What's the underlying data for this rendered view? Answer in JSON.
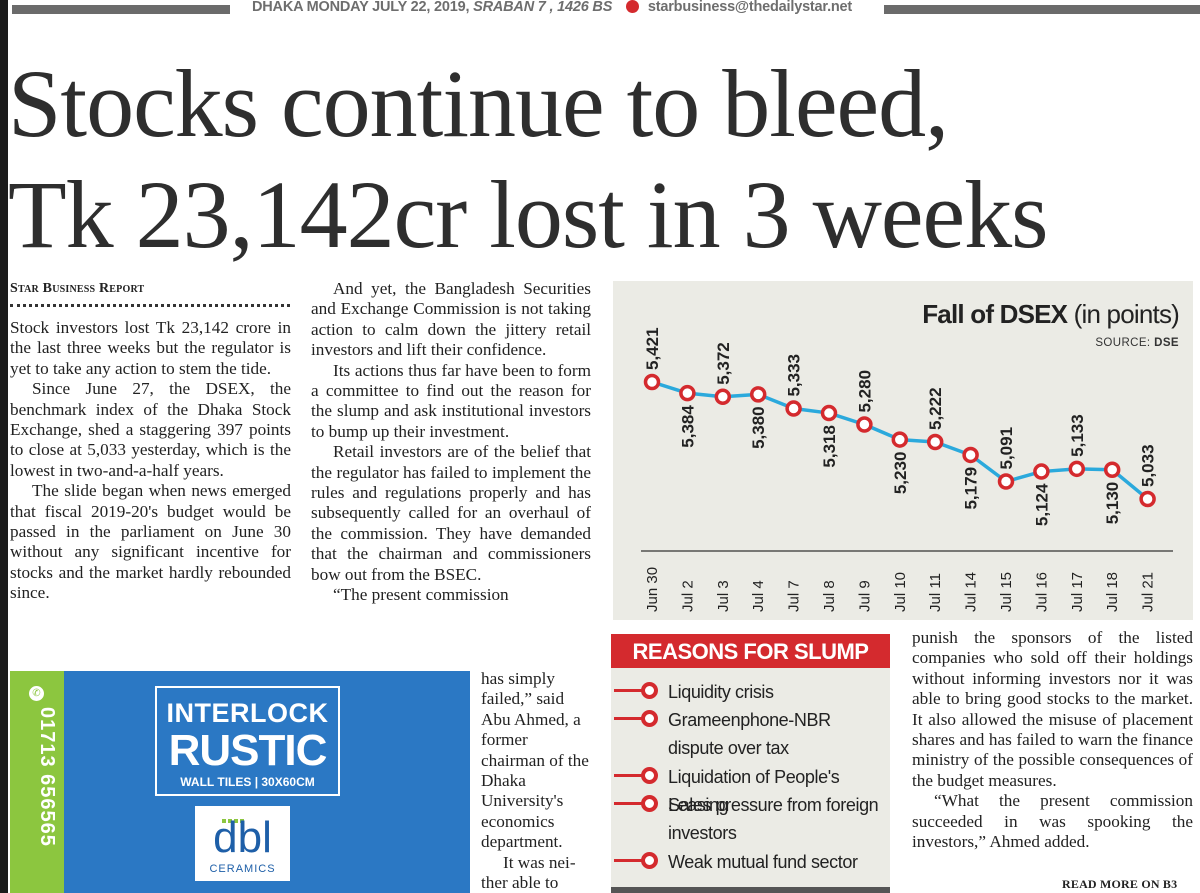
{
  "masthead": {
    "dateline": "DHAKA MONDAY JULY 22, 2019,",
    "bangla_date": "SRABAN 7 , 1426 BS",
    "email": "starbusiness@thedailystar.net"
  },
  "headline": {
    "line1": "Stocks continue to bleed,",
    "line2": "Tk 23,142cr lost in 3 weeks"
  },
  "byline": "Star Business Report",
  "col1": [
    "Stock investors lost Tk 23,142 crore in the last three weeks but the regulator is yet to take any action to stem the tide.",
    "Since June 27, the DSEX, the benchmark index of the Dhaka Stock Exchange, shed a staggering 397 points to close at 5,033 yesterday, which is the lowest in two-and-a-half years.",
    "The slide began when news emerged that fiscal 2019-20's budget would be passed in the parliament on June 30 without any significant incentive for stocks and the market hardly rebounded since."
  ],
  "col2": [
    "And yet, the Bangladesh Securities and Exchange Commission is not taking action to calm down the jittery retail investors and lift their confidence.",
    "Its actions thus far have been to form a committee to find out the reason for the slump and ask institutional investors to bump up their investment.",
    "Retail investors are of the belief that the regulator has failed to implement the rules and regulations properly and has subsequently called for an overhaul of the commission. They have demanded that the chairman and commissioners bow out from the BSEC.",
    "“The present commission"
  ],
  "col2b": [
    "has simply failed,” said Abu Ahmed, a former chairman of the Dhaka University's economics department.",
    "It was nei-ther able to"
  ],
  "col3": [
    "punish the sponsors of the listed companies who sold off their holdings without informing investors nor it was able to bring good stocks to the market. It also allowed the misuse of placement shares and has failed to warn the finance ministry of the possible consequences of the budget measures.",
    "“What the present commission succeeded in was spooking the investors,” Ahmed added."
  ],
  "read_more": "READ MORE ON B3",
  "ad": {
    "phone": "01713 656565",
    "title1": "INTERLOCK",
    "title2": "RUSTIC",
    "title3": "WALL TILES | 30X60CM",
    "logo": "dbl",
    "logo_sub": "CERAMICS"
  },
  "reasons": {
    "title": "REASONS FOR SLUMP",
    "items": [
      "Liquidity crisis",
      "Grameenphone-NBR dispute over tax",
      "Liquidation of People's Leasing",
      "Sales pressure from foreign investors",
      "Weak mutual fund sector"
    ]
  },
  "chart_data": {
    "type": "line",
    "title": "Fall of DSEX",
    "title_unit": "(in points)",
    "source_label": "SOURCE:",
    "source": "DSE",
    "categories": [
      "Jun 30",
      "Jul 2",
      "Jul 3",
      "Jul 4",
      "Jul 7",
      "Jul 8",
      "Jul 9",
      "Jul 10",
      "Jul 11",
      "Jul 14",
      "Jul 15",
      "Jul 16",
      "Jul 17",
      "Jul 18",
      "Jul 21"
    ],
    "values": [
      5421,
      5384,
      5372,
      5380,
      5333,
      5318,
      5280,
      5230,
      5222,
      5179,
      5091,
      5124,
      5133,
      5130,
      5033
    ],
    "value_labels": [
      "5,421",
      "5,384",
      "5,372",
      "5,380",
      "5,333",
      "5,318",
      "5,280",
      "5,230",
      "5,222",
      "5,179",
      "5,091",
      "5,124",
      "5,133",
      "5,130",
      "5,033"
    ],
    "label_position": [
      "above",
      "below",
      "above",
      "below",
      "above",
      "below",
      "above",
      "below",
      "above",
      "below",
      "above",
      "below",
      "above",
      "below",
      "above"
    ],
    "ylim": [
      5000,
      5450
    ],
    "line_color": "#2ba9dc",
    "marker_color": "#d42a2e",
    "grid": false,
    "legend": "none"
  }
}
